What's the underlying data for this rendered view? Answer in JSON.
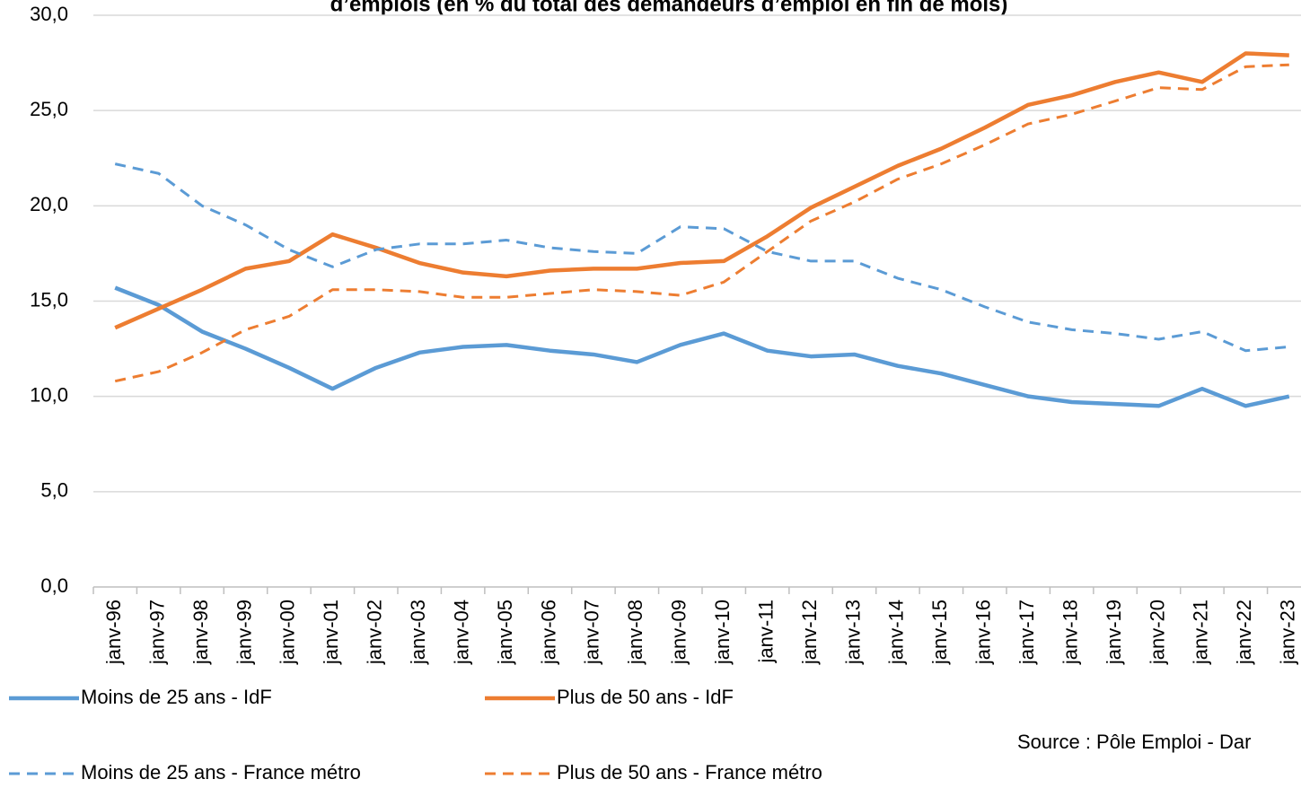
{
  "chart_data": {
    "type": "line",
    "title": "d’emplois (en % du total des demandeurs d’emploi en fin de mois)",
    "source": "Source : Pôle Emploi - Dar",
    "categories": [
      "janv-96",
      "janv-97",
      "janv-98",
      "janv-99",
      "janv-00",
      "janv-01",
      "janv-02",
      "janv-03",
      "janv-04",
      "janv-05",
      "janv-06",
      "janv-07",
      "janv-08",
      "janv-09",
      "janv-10",
      "janv-11",
      "janv-12",
      "janv-13",
      "janv-14",
      "janv-15",
      "janv-16",
      "janv-17",
      "janv-18",
      "janv-19",
      "janv-20",
      "janv-21",
      "janv-22",
      "janv-23"
    ],
    "series": [
      {
        "name": "Moins de 25 ans - IdF",
        "color": "#5b9bd5",
        "linestyle": "solid",
        "values": [
          15.7,
          14.8,
          13.4,
          12.5,
          11.5,
          10.4,
          11.5,
          12.3,
          12.6,
          12.7,
          12.4,
          12.2,
          11.8,
          12.7,
          13.3,
          12.4,
          12.1,
          12.2,
          11.6,
          11.2,
          10.6,
          10.0,
          9.7,
          9.6,
          9.5,
          10.4,
          9.5,
          10.0
        ]
      },
      {
        "name": "Plus de 50 ans - IdF",
        "color": "#ed7d31",
        "linestyle": "solid",
        "values": [
          13.6,
          14.6,
          15.6,
          16.7,
          17.1,
          18.5,
          17.8,
          17.0,
          16.5,
          16.3,
          16.6,
          16.7,
          16.7,
          17.0,
          17.1,
          18.4,
          19.9,
          21.0,
          22.1,
          23.0,
          24.1,
          25.3,
          25.8,
          26.5,
          27.0,
          26.5,
          28.0,
          27.9
        ]
      },
      {
        "name": "Moins de 25 ans - France métro",
        "color": "#5b9bd5",
        "linestyle": "dashed",
        "values": [
          22.2,
          21.7,
          20.0,
          19.0,
          17.7,
          16.8,
          17.7,
          18.0,
          18.0,
          18.2,
          17.8,
          17.6,
          17.5,
          18.9,
          18.8,
          17.6,
          17.1,
          17.1,
          16.2,
          15.6,
          14.7,
          13.9,
          13.5,
          13.3,
          13.0,
          13.4,
          12.4,
          12.6
        ]
      },
      {
        "name": "Plus de 50 ans - France métro",
        "color": "#ed7d31",
        "linestyle": "dashed",
        "values": [
          10.8,
          11.3,
          12.3,
          13.5,
          14.2,
          15.6,
          15.6,
          15.5,
          15.2,
          15.2,
          15.4,
          15.6,
          15.5,
          15.3,
          16.0,
          17.6,
          19.2,
          20.2,
          21.4,
          22.2,
          23.2,
          24.3,
          24.8,
          25.5,
          26.2,
          26.1,
          27.3,
          27.4
        ]
      }
    ],
    "ylim": [
      0,
      30
    ],
    "yticks": [
      {
        "value": 0,
        "label": "0,0"
      },
      {
        "value": 5,
        "label": "5,0"
      },
      {
        "value": 10,
        "label": "10,0"
      },
      {
        "value": 15,
        "label": "15,0"
      },
      {
        "value": 20,
        "label": "20,0"
      },
      {
        "value": 25,
        "label": "25,0"
      },
      {
        "value": 30,
        "label": "30,0"
      }
    ],
    "grid": true,
    "legend": "bottom"
  }
}
